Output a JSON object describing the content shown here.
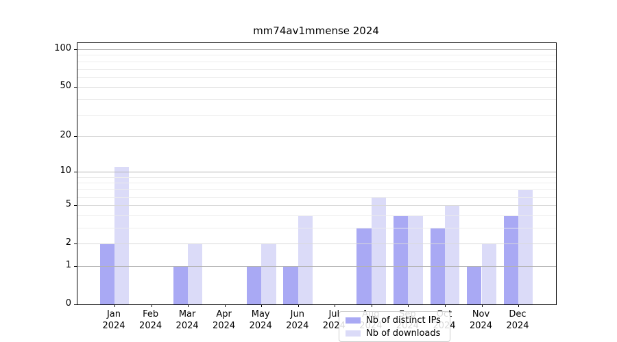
{
  "chart_data": {
    "type": "bar",
    "title": "mm74av1mmense 2024",
    "year": "2024",
    "categories": [
      "Jan",
      "Feb",
      "Mar",
      "Apr",
      "May",
      "Jun",
      "Jul",
      "Aug",
      "Sep",
      "Oct",
      "Nov",
      "Dec"
    ],
    "series": [
      {
        "name": "Nb of distinct IPs",
        "color": "#a9a9f4",
        "values": [
          2,
          0,
          1,
          0,
          1,
          1,
          0,
          3,
          4,
          3,
          1,
          4
        ]
      },
      {
        "name": "Nb of downloads",
        "color": "#dbdbf8",
        "values": [
          11,
          0,
          2,
          0,
          2,
          4,
          0,
          6,
          4,
          5,
          2,
          7
        ]
      }
    ],
    "yscale": "log10(1+x)",
    "ylim": [
      0,
      112
    ],
    "y_tick_labels": [
      100,
      50,
      20,
      10,
      5,
      2,
      1,
      0
    ],
    "y_major_gridlines": [
      1,
      10,
      100
    ],
    "y_mid_gridlines": [
      2,
      5,
      20,
      50
    ],
    "y_minor_gridlines": [
      3,
      4,
      6,
      7,
      8,
      9,
      30,
      40,
      60,
      70,
      80,
      90
    ],
    "grid": true,
    "legend_position": "lower center"
  }
}
